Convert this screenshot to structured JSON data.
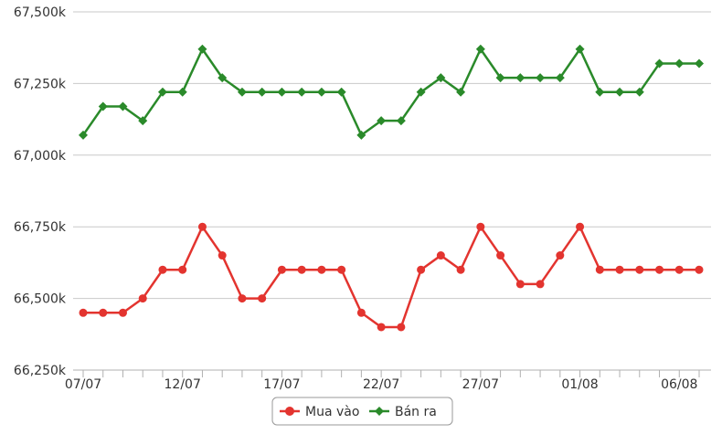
{
  "chart_data": {
    "type": "line",
    "title": "",
    "xlabel": "",
    "ylabel": "",
    "ylim": [
      66250,
      67500
    ],
    "y_ticks": [
      66250,
      66500,
      66750,
      67000,
      67250,
      67500
    ],
    "y_tick_labels": [
      "66,250k",
      "66,500k",
      "66,750k",
      "67,000k",
      "67,250k",
      "67,500k"
    ],
    "x": [
      "07/07",
      "08/07",
      "09/07",
      "10/07",
      "11/07",
      "12/07",
      "13/07",
      "14/07",
      "15/07",
      "16/07",
      "17/07",
      "18/07",
      "19/07",
      "20/07",
      "21/07",
      "22/07",
      "23/07",
      "24/07",
      "25/07",
      "26/07",
      "27/07",
      "28/07",
      "29/07",
      "30/07",
      "31/07",
      "01/08",
      "02/08",
      "03/08",
      "04/08",
      "05/08",
      "06/08",
      "07/08"
    ],
    "x_tick_labels": [
      {
        "index": 0,
        "label": "07/07"
      },
      {
        "index": 5,
        "label": "12/07"
      },
      {
        "index": 10,
        "label": "17/07"
      },
      {
        "index": 15,
        "label": "22/07"
      },
      {
        "index": 20,
        "label": "27/07"
      },
      {
        "index": 25,
        "label": "01/08"
      },
      {
        "index": 30,
        "label": "06/08"
      }
    ],
    "grid": true,
    "legend_position": "bottom-center",
    "series": [
      {
        "name": "Mua vào",
        "color": "#e3342f",
        "marker": "circle",
        "values": [
          66450,
          66450,
          66450,
          66500,
          66600,
          66600,
          66750,
          66650,
          66500,
          66500,
          66600,
          66600,
          66600,
          66600,
          66450,
          66400,
          66400,
          66600,
          66650,
          66600,
          66750,
          66650,
          66550,
          66550,
          66650,
          66750,
          66600,
          66600,
          66600,
          66600,
          66600,
          66600
        ]
      },
      {
        "name": "Bán ra",
        "color": "#2a8a2a",
        "marker": "diamond",
        "values": [
          67070,
          67170,
          67170,
          67120,
          67220,
          67220,
          67370,
          67270,
          67220,
          67220,
          67220,
          67220,
          67220,
          67220,
          67070,
          67120,
          67120,
          67220,
          67270,
          67220,
          67370,
          67270,
          67270,
          67270,
          67270,
          67370,
          67220,
          67220,
          67220,
          67320,
          67320,
          67320
        ]
      }
    ]
  }
}
